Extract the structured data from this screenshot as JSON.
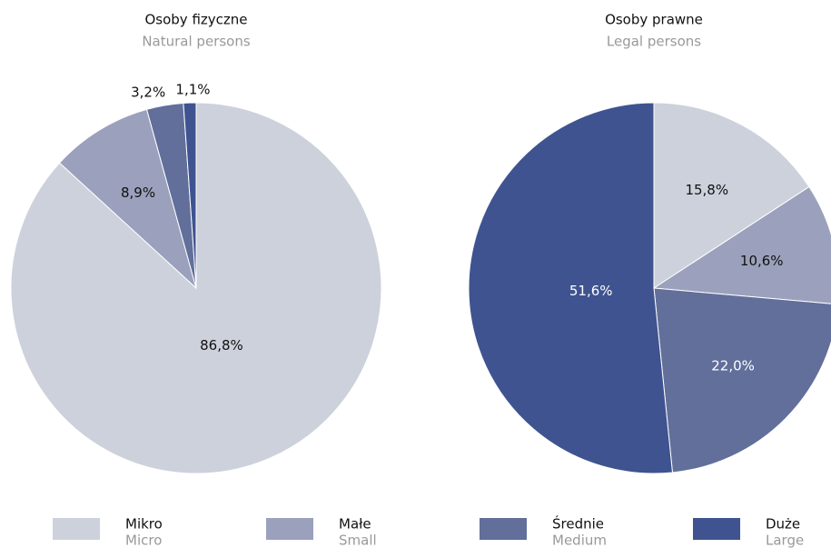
{
  "chart_data": [
    {
      "type": "pie",
      "title": "Osoby fizyczne",
      "subtitle": "Natural persons",
      "values": [
        86.8,
        8.9,
        3.2,
        1.1
      ],
      "value_labels": [
        "86,8%",
        "8,9%",
        "3,2%",
        "1,1%"
      ]
    },
    {
      "type": "pie",
      "title": "Osoby prawne",
      "subtitle": "Legal persons",
      "values": [
        15.8,
        10.6,
        22.0,
        51.6
      ],
      "value_labels": [
        "15,8%",
        "10,6%",
        "22,0%",
        "51,6%"
      ]
    }
  ],
  "legend": {
    "items": [
      {
        "label": "Mikro",
        "sublabel": "Micro",
        "color": "#cdd1dc"
      },
      {
        "label": "Małe",
        "sublabel": "Small",
        "color": "#9ba1bc"
      },
      {
        "label": "Średnie",
        "sublabel": "Medium",
        "color": "#626f9b"
      },
      {
        "label": "Duże",
        "sublabel": "Large",
        "color": "#3f5390"
      }
    ]
  }
}
